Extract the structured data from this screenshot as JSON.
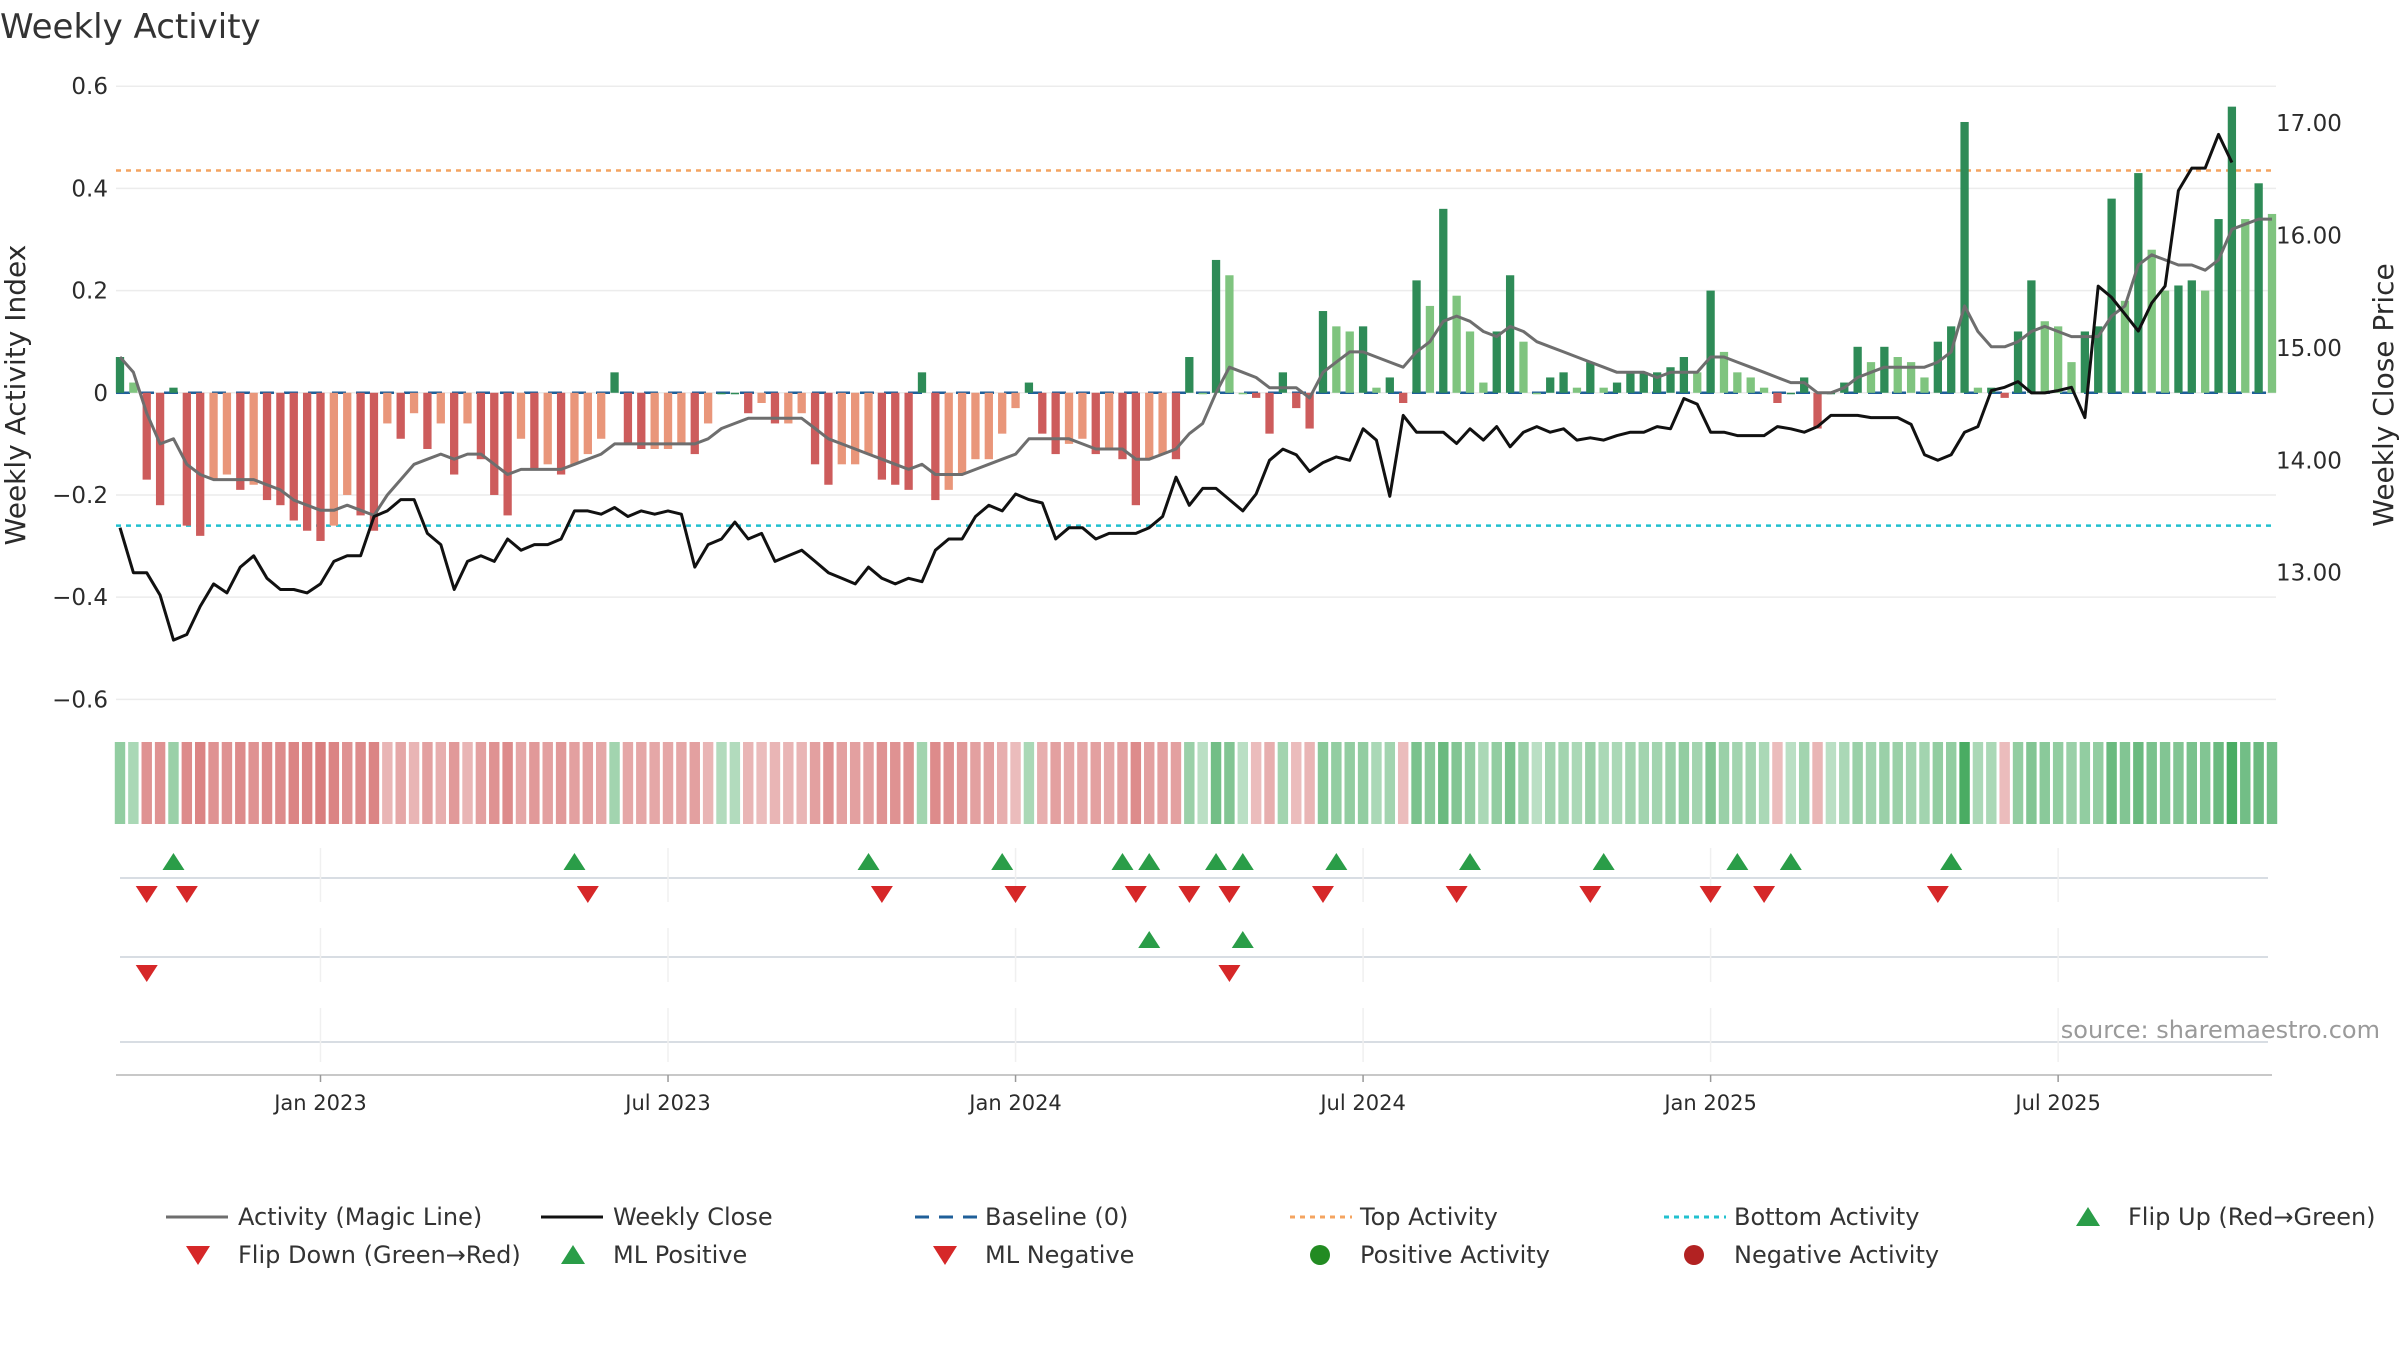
{
  "chart_data": {
    "type": "bar",
    "title": "Weekly Activity",
    "ylabel": "Weekly Activity Index",
    "y2label": "Weekly Close Price",
    "ylim": [
      -0.66,
      0.62
    ],
    "y2lim": [
      11.6,
      17.42
    ],
    "yticks": [
      {
        "v": 0.6,
        "t": "0.6"
      },
      {
        "v": 0.4,
        "t": "0.4"
      },
      {
        "v": 0.2,
        "t": "0.2"
      },
      {
        "v": 0,
        "t": "0"
      },
      {
        "v": -0.2,
        "t": "−0.2"
      },
      {
        "v": -0.4,
        "t": "−0.4"
      },
      {
        "v": -0.6,
        "t": "−0.6"
      }
    ],
    "y2ticks": [
      {
        "v": 17,
        "t": "17.00"
      },
      {
        "v": 16,
        "t": "16.00"
      },
      {
        "v": 15,
        "t": "15.00"
      },
      {
        "v": 14,
        "t": "14.00"
      },
      {
        "v": 13,
        "t": "13.00"
      }
    ],
    "xticks": [
      {
        "i": 15,
        "t": "Jan 2023"
      },
      {
        "i": 41,
        "t": "Jul 2023"
      },
      {
        "i": 67,
        "t": "Jan 2024"
      },
      {
        "i": 93,
        "t": "Jul 2024"
      },
      {
        "i": 119,
        "t": "Jan 2025"
      },
      {
        "i": 145,
        "t": "Jul 2025"
      }
    ],
    "top_activity": 0.435,
    "bottom_activity": -0.26,
    "baseline": 0,
    "activity": [
      0.07,
      0.02,
      -0.17,
      -0.22,
      0.01,
      -0.26,
      -0.28,
      -0.17,
      -0.16,
      -0.19,
      -0.18,
      -0.21,
      -0.22,
      -0.25,
      -0.27,
      -0.29,
      -0.26,
      -0.2,
      -0.24,
      -0.27,
      -0.06,
      -0.09,
      -0.04,
      -0.11,
      -0.06,
      -0.16,
      -0.06,
      -0.13,
      -0.2,
      -0.24,
      -0.09,
      -0.15,
      -0.14,
      -0.16,
      -0.14,
      -0.12,
      -0.09,
      0.04,
      -0.1,
      -0.11,
      -0.11,
      -0.11,
      -0.1,
      -0.12,
      -0.06,
      0.0,
      0.0,
      -0.04,
      -0.02,
      -0.06,
      -0.06,
      -0.04,
      -0.14,
      -0.18,
      -0.14,
      -0.14,
      -0.12,
      -0.17,
      -0.18,
      -0.19,
      0.04,
      -0.21,
      -0.19,
      -0.16,
      -0.13,
      -0.13,
      -0.08,
      -0.03,
      0.02,
      -0.08,
      -0.12,
      -0.1,
      -0.09,
      -0.12,
      -0.11,
      -0.13,
      -0.22,
      -0.13,
      -0.12,
      -0.13,
      0.07,
      0.0,
      0.26,
      0.23,
      0.0,
      -0.01,
      -0.08,
      0.04,
      -0.03,
      -0.07,
      0.16,
      0.13,
      0.12,
      0.13,
      0.01,
      0.03,
      -0.02,
      0.22,
      0.17,
      0.36,
      0.19,
      0.12,
      0.02,
      0.12,
      0.23,
      0.1,
      0.0,
      0.03,
      0.04,
      0.01,
      0.06,
      0.01,
      0.02,
      0.04,
      0.04,
      0.04,
      0.05,
      0.07,
      0.04,
      0.2,
      0.08,
      0.04,
      0.03,
      0.01,
      -0.02,
      0.0,
      0.03,
      -0.07,
      0.0,
      0.02,
      0.09,
      0.06,
      0.09,
      0.07,
      0.06,
      0.03,
      0.1,
      0.13,
      0.53,
      0.01,
      0.01,
      -0.01,
      0.12,
      0.22,
      0.14,
      0.13,
      0.06,
      0.12,
      0.13,
      0.38,
      0.18,
      0.43,
      0.28,
      0.2,
      0.21,
      0.22,
      0.2,
      0.34,
      0.56,
      0.34,
      0.41,
      0.35
    ],
    "magic_line": [
      0.07,
      0.04,
      -0.04,
      -0.1,
      -0.09,
      -0.14,
      -0.16,
      -0.17,
      -0.17,
      -0.17,
      -0.17,
      -0.18,
      -0.19,
      -0.21,
      -0.22,
      -0.23,
      -0.23,
      -0.22,
      -0.23,
      -0.24,
      -0.2,
      -0.17,
      -0.14,
      -0.13,
      -0.12,
      -0.13,
      -0.12,
      -0.12,
      -0.14,
      -0.16,
      -0.15,
      -0.15,
      -0.15,
      -0.15,
      -0.14,
      -0.13,
      -0.12,
      -0.1,
      -0.1,
      -0.1,
      -0.1,
      -0.1,
      -0.1,
      -0.1,
      -0.09,
      -0.07,
      -0.06,
      -0.05,
      -0.05,
      -0.05,
      -0.05,
      -0.05,
      -0.07,
      -0.09,
      -0.1,
      -0.11,
      -0.12,
      -0.13,
      -0.14,
      -0.15,
      -0.14,
      -0.16,
      -0.16,
      -0.16,
      -0.15,
      -0.14,
      -0.13,
      -0.12,
      -0.09,
      -0.09,
      -0.09,
      -0.09,
      -0.1,
      -0.11,
      -0.11,
      -0.11,
      -0.13,
      -0.13,
      -0.12,
      -0.11,
      -0.08,
      -0.06,
      0.0,
      0.05,
      0.04,
      0.03,
      0.01,
      0.01,
      0.01,
      -0.01,
      0.04,
      0.06,
      0.08,
      0.08,
      0.07,
      0.06,
      0.05,
      0.08,
      0.1,
      0.14,
      0.15,
      0.14,
      0.12,
      0.11,
      0.13,
      0.12,
      0.1,
      0.09,
      0.08,
      0.07,
      0.06,
      0.05,
      0.04,
      0.04,
      0.04,
      0.03,
      0.04,
      0.04,
      0.04,
      0.07,
      0.07,
      0.06,
      0.05,
      0.04,
      0.03,
      0.02,
      0.02,
      0.0,
      0.0,
      0.01,
      0.03,
      0.04,
      0.05,
      0.05,
      0.05,
      0.05,
      0.06,
      0.08,
      0.17,
      0.12,
      0.09,
      0.09,
      0.1,
      0.12,
      0.13,
      0.12,
      0.11,
      0.11,
      0.11,
      0.15,
      0.17,
      0.25,
      0.27,
      0.26,
      0.25,
      0.25,
      0.24,
      0.26,
      0.32,
      0.33,
      0.34,
      0.34
    ],
    "weekly_close": [
      13.4,
      13.0,
      13.0,
      12.8,
      12.4,
      12.45,
      12.7,
      12.9,
      12.82,
      13.05,
      13.15,
      12.95,
      12.85,
      12.85,
      12.82,
      12.9,
      13.1,
      13.15,
      13.15,
      13.5,
      13.55,
      13.65,
      13.65,
      13.35,
      13.25,
      12.85,
      13.1,
      13.15,
      13.1,
      13.3,
      13.2,
      13.25,
      13.25,
      13.3,
      13.55,
      13.55,
      13.52,
      13.58,
      13.5,
      13.55,
      13.52,
      13.55,
      13.52,
      13.05,
      13.25,
      13.3,
      13.45,
      13.3,
      13.35,
      13.1,
      13.15,
      13.2,
      13.1,
      13.0,
      12.95,
      12.9,
      13.05,
      12.95,
      12.9,
      12.95,
      12.92,
      13.2,
      13.3,
      13.3,
      13.5,
      13.6,
      13.55,
      13.7,
      13.65,
      13.62,
      13.3,
      13.4,
      13.4,
      13.3,
      13.35,
      13.35,
      13.35,
      13.4,
      13.5,
      13.85,
      13.6,
      13.75,
      13.75,
      13.65,
      13.55,
      13.7,
      14.0,
      14.1,
      14.05,
      13.9,
      13.98,
      14.03,
      14.0,
      14.28,
      14.18,
      13.68,
      14.4,
      14.25,
      14.25,
      14.25,
      14.15,
      14.28,
      14.18,
      14.3,
      14.12,
      14.25,
      14.3,
      14.25,
      14.28,
      14.18,
      14.2,
      14.18,
      14.22,
      14.25,
      14.25,
      14.3,
      14.28,
      14.55,
      14.5,
      14.25,
      14.25,
      14.22,
      14.22,
      14.22,
      14.3,
      14.28,
      14.25,
      14.3,
      14.4,
      14.4,
      14.4,
      14.38,
      14.38,
      14.38,
      14.32,
      14.05,
      14.0,
      14.05,
      14.25,
      14.3,
      14.62,
      14.65,
      14.7,
      14.6,
      14.6,
      14.62,
      14.65,
      14.38,
      15.55,
      15.45,
      15.3,
      15.15,
      15.4,
      15.55,
      16.4,
      16.6,
      16.6,
      16.9,
      16.65
    ],
    "strip_intensity": [
      0.35,
      0.2,
      0.45,
      0.45,
      0.3,
      0.5,
      0.55,
      0.45,
      0.45,
      0.5,
      0.45,
      0.5,
      0.5,
      0.55,
      0.55,
      0.6,
      0.55,
      0.45,
      0.5,
      0.55,
      0.2,
      0.3,
      0.2,
      0.35,
      0.25,
      0.4,
      0.2,
      0.35,
      0.45,
      0.5,
      0.3,
      0.4,
      0.35,
      0.4,
      0.35,
      0.35,
      0.3,
      0.25,
      0.3,
      0.3,
      0.3,
      0.3,
      0.3,
      0.35,
      0.2,
      0.15,
      0.15,
      0.2,
      0.15,
      0.2,
      0.2,
      0.2,
      0.35,
      0.45,
      0.35,
      0.35,
      0.35,
      0.45,
      0.45,
      0.45,
      0.25,
      0.5,
      0.45,
      0.4,
      0.35,
      0.35,
      0.25,
      0.15,
      0.2,
      0.25,
      0.35,
      0.3,
      0.3,
      0.35,
      0.3,
      0.35,
      0.5,
      0.35,
      0.35,
      0.35,
      0.3,
      0.1,
      0.55,
      0.45,
      0.1,
      0.15,
      0.25,
      0.25,
      0.15,
      0.2,
      0.4,
      0.35,
      0.35,
      0.35,
      0.2,
      0.25,
      0.15,
      0.5,
      0.4,
      0.6,
      0.45,
      0.35,
      0.2,
      0.35,
      0.5,
      0.3,
      0.1,
      0.25,
      0.25,
      0.2,
      0.3,
      0.2,
      0.2,
      0.25,
      0.25,
      0.25,
      0.3,
      0.35,
      0.25,
      0.45,
      0.3,
      0.25,
      0.25,
      0.2,
      0.15,
      0.1,
      0.25,
      0.2,
      0.1,
      0.2,
      0.3,
      0.25,
      0.3,
      0.3,
      0.25,
      0.25,
      0.35,
      0.35,
      0.8,
      0.2,
      0.2,
      0.15,
      0.35,
      0.45,
      0.4,
      0.35,
      0.3,
      0.35,
      0.35,
      0.6,
      0.45,
      0.6,
      0.5,
      0.45,
      0.45,
      0.5,
      0.45,
      0.6,
      0.8,
      0.55,
      0.6,
      0.55
    ],
    "flip_up": [
      4,
      34,
      56,
      66,
      75,
      77,
      82,
      84,
      91,
      101,
      111,
      121,
      125,
      137
    ],
    "flip_down": [
      2,
      5,
      35,
      57,
      67,
      76,
      80,
      83,
      90,
      100,
      110,
      119,
      123,
      136
    ],
    "ml_positive": [
      77,
      84
    ],
    "ml_negative": [
      2,
      83
    ],
    "colors": {
      "pos_dark": "#2e8b57",
      "pos_light": "#7fc47f",
      "neg_dark": "#cd5c5c",
      "neg_light": "#e9967a",
      "magic_line": "#6e6e6e",
      "close_line": "#111111",
      "baseline": "#1f5f99",
      "top_line": "#f4a460",
      "bottom_line": "#22c1cf",
      "marker_green": "#2a9d48",
      "marker_red": "#d62728",
      "dot_green": "#228b22",
      "dot_red": "#b22222"
    },
    "legend": [
      {
        "label": "Activity (Magic Line)",
        "kind": "line-grey"
      },
      {
        "label": "Weekly Close",
        "kind": "line-black"
      },
      {
        "label": "Baseline (0)",
        "kind": "dash-blue"
      },
      {
        "label": "Top Activity",
        "kind": "dot-orange"
      },
      {
        "label": "Bottom Activity",
        "kind": "dot-cyan"
      },
      {
        "label": "Flip Up (Red→Green)",
        "kind": "tri-up"
      },
      {
        "label": "Flip Down (Green→Red)",
        "kind": "tri-down"
      },
      {
        "label": "ML Positive",
        "kind": "tri-up"
      },
      {
        "label": "ML Negative",
        "kind": "tri-down"
      },
      {
        "label": "Positive Activity",
        "kind": "dot-green"
      },
      {
        "label": "Negative Activity",
        "kind": "dot-red"
      }
    ],
    "source": "source: sharemaestro.com"
  }
}
